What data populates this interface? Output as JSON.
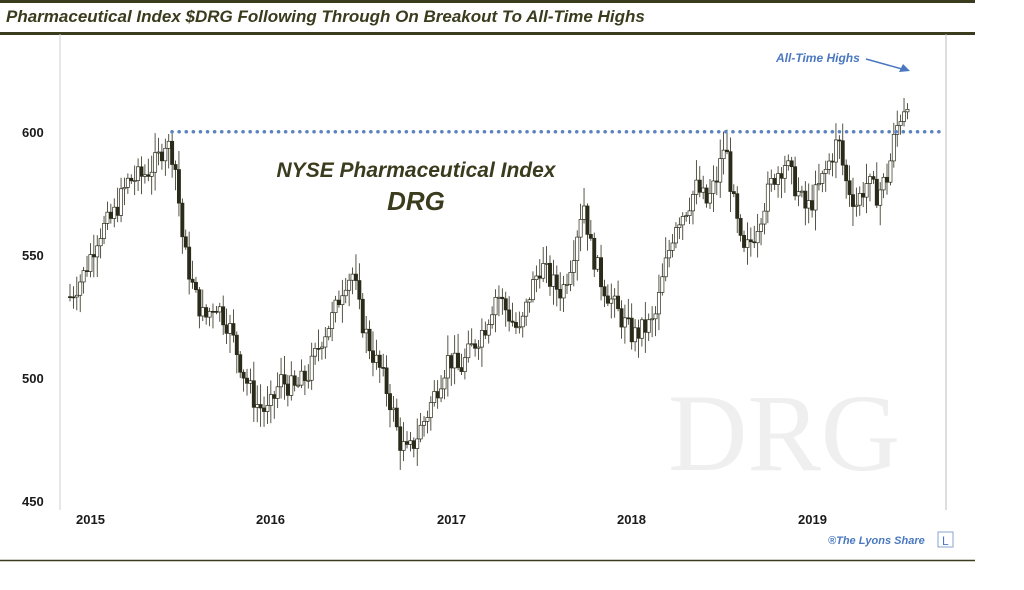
{
  "chart_data": {
    "type": "candlestick",
    "title": "Pharmaceutical Index $DRG Following Through On Breakout To All-Time Highs",
    "center_label_line1": "NYSE Pharmaceutical Index",
    "center_label_line2": "DRG",
    "watermark": "DRG",
    "annotation": "All-Time Highs",
    "credit": "®The Lyons Share",
    "credit_logo": "L",
    "resistance_level": 609,
    "ylim": [
      450,
      630
    ],
    "y_ticks": [
      {
        "label": "600",
        "value": 600
      },
      {
        "label": "550",
        "value": 550
      },
      {
        "label": "500",
        "value": 500
      },
      {
        "label": "450",
        "value": 450
      }
    ],
    "x_ticks": [
      {
        "label": "2015",
        "t": 2015.0
      },
      {
        "label": "2016",
        "t": 2016.0
      },
      {
        "label": "2017",
        "t": 2017.0
      },
      {
        "label": "2018",
        "t": 2018.0
      },
      {
        "label": "2019",
        "t": 2019.0
      }
    ],
    "xlim": [
      2014.92,
      2019.75
    ],
    "close_path": [
      [
        2014.92,
        538
      ],
      [
        2015.0,
        548
      ],
      [
        2015.08,
        565
      ],
      [
        2015.16,
        572
      ],
      [
        2015.25,
        588
      ],
      [
        2015.33,
        590
      ],
      [
        2015.41,
        596
      ],
      [
        2015.46,
        605
      ],
      [
        2015.51,
        598
      ],
      [
        2015.56,
        560
      ],
      [
        2015.62,
        540
      ],
      [
        2015.68,
        528
      ],
      [
        2015.74,
        536
      ],
      [
        2015.82,
        525
      ],
      [
        2015.9,
        505
      ],
      [
        2015.97,
        492
      ],
      [
        2016.04,
        488
      ],
      [
        2016.11,
        502
      ],
      [
        2016.19,
        498
      ],
      [
        2016.27,
        505
      ],
      [
        2016.34,
        520
      ],
      [
        2016.41,
        530
      ],
      [
        2016.47,
        545
      ],
      [
        2016.52,
        548
      ],
      [
        2016.56,
        530
      ],
      [
        2016.62,
        515
      ],
      [
        2016.68,
        505
      ],
      [
        2016.74,
        490
      ],
      [
        2016.78,
        476
      ],
      [
        2016.83,
        470
      ],
      [
        2016.88,
        478
      ],
      [
        2016.94,
        488
      ],
      [
        2017.0,
        500
      ],
      [
        2017.06,
        512
      ],
      [
        2017.12,
        506
      ],
      [
        2017.19,
        516
      ],
      [
        2017.27,
        526
      ],
      [
        2017.33,
        540
      ],
      [
        2017.4,
        530
      ],
      [
        2017.46,
        522
      ],
      [
        2017.52,
        540
      ],
      [
        2017.58,
        552
      ],
      [
        2017.64,
        544
      ],
      [
        2017.7,
        540
      ],
      [
        2017.76,
        556
      ],
      [
        2017.82,
        580
      ],
      [
        2017.86,
        560
      ],
      [
        2017.92,
        545
      ],
      [
        2017.98,
        536
      ],
      [
        2018.04,
        528
      ],
      [
        2018.1,
        521
      ],
      [
        2018.16,
        524
      ],
      [
        2018.22,
        527
      ],
      [
        2018.28,
        550
      ],
      [
        2018.34,
        570
      ],
      [
        2018.4,
        576
      ],
      [
        2018.46,
        585
      ],
      [
        2018.52,
        578
      ],
      [
        2018.58,
        590
      ],
      [
        2018.62,
        605
      ],
      [
        2018.66,
        582
      ],
      [
        2018.72,
        555
      ],
      [
        2018.78,
        564
      ],
      [
        2018.84,
        578
      ],
      [
        2018.9,
        590
      ],
      [
        2018.96,
        596
      ],
      [
        2019.02,
        585
      ],
      [
        2019.08,
        575
      ],
      [
        2019.14,
        583
      ],
      [
        2019.2,
        594
      ],
      [
        2019.26,
        606
      ],
      [
        2019.3,
        588
      ],
      [
        2019.36,
        578
      ],
      [
        2019.42,
        587
      ],
      [
        2019.48,
        582
      ],
      [
        2019.54,
        590
      ],
      [
        2019.58,
        608
      ],
      [
        2019.62,
        618
      ],
      [
        2019.66,
        625
      ]
    ]
  }
}
